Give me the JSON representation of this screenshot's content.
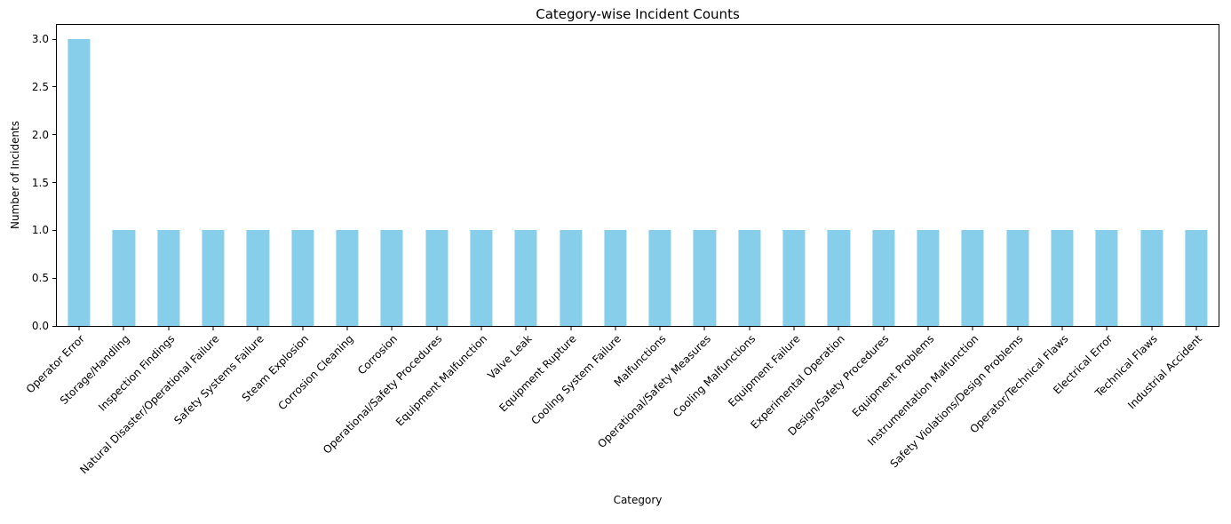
{
  "chart_data": {
    "type": "bar",
    "title": "Category-wise Incident Counts",
    "xlabel": "Category",
    "ylabel": "Number of Incidents",
    "categories": [
      "Operator Error",
      "Storage/Handling",
      "Inspection Findings",
      "Natural Disaster/Operational Failure",
      "Safety Systems Failure",
      "Steam Explosion",
      "Corrosion Cleaning",
      "Corrosion",
      "Operational/Safety Procedures",
      "Equipment Malfunction",
      "Valve Leak",
      "Equipment Rupture",
      "Cooling System Failure",
      "Malfunctions",
      "Operational/Safety Measures",
      "Cooling Malfunctions",
      "Equipment Failure",
      "Experimental Operation",
      "Design/Safety Procedures",
      "Equipment Problems",
      "Instrumentation Malfunction",
      "Safety Violations/Design Problems",
      "Operator/Technical Flaws",
      "Electrical Error",
      "Technical Flaws",
      "Industrial Accident"
    ],
    "values": [
      3,
      1,
      1,
      1,
      1,
      1,
      1,
      1,
      1,
      1,
      1,
      1,
      1,
      1,
      1,
      1,
      1,
      1,
      1,
      1,
      1,
      1,
      1,
      1,
      1,
      1
    ],
    "bar_color": "#87CEEB",
    "axis_color": "#000000",
    "ylim": [
      0,
      3.15
    ],
    "yticks": [
      {
        "value": 0.0,
        "label": "0.0"
      },
      {
        "value": 0.5,
        "label": "0.5"
      },
      {
        "value": 1.0,
        "label": "1.0"
      },
      {
        "value": 1.5,
        "label": "1.5"
      },
      {
        "value": 2.0,
        "label": "2.0"
      },
      {
        "value": 2.5,
        "label": "2.5"
      },
      {
        "value": 3.0,
        "label": "3.0"
      }
    ],
    "bar_width_fraction": 0.5,
    "x_tick_rotation_deg": 45,
    "grid": false,
    "legend": "none"
  }
}
